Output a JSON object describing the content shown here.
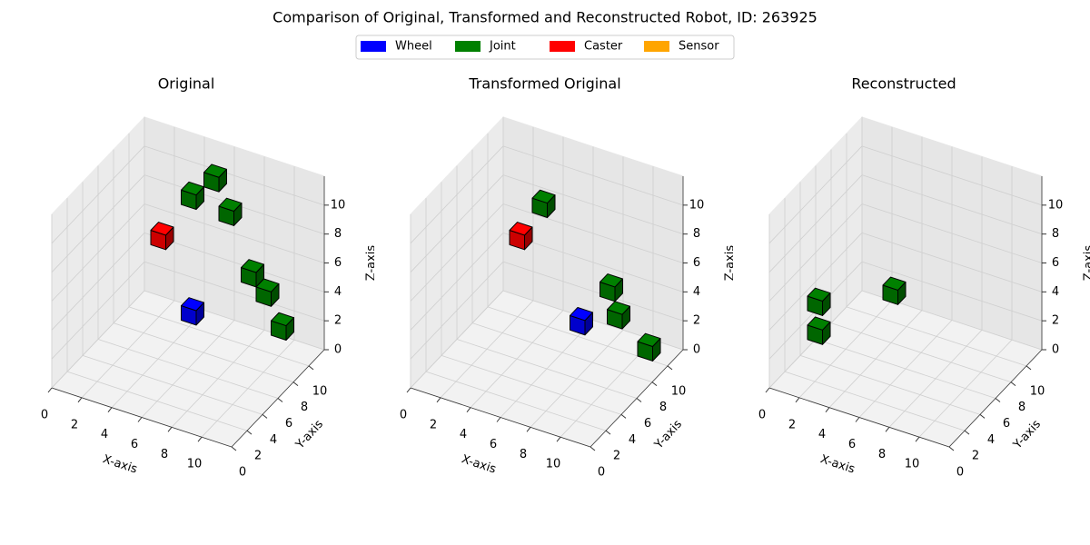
{
  "chart_data": {
    "type": "voxel",
    "title": "Comparison of Original, Transformed and Reconstructed Robot, ID: 263925",
    "legend_loc": "upper center",
    "series": [
      {
        "name": "Wheel",
        "color": "#0000ff"
      },
      {
        "name": "Joint",
        "color": "#008000"
      },
      {
        "name": "Caster",
        "color": "#ff0000"
      },
      {
        "name": "Sensor",
        "color": "#ffa500"
      }
    ],
    "panels": [
      {
        "title": "Original",
        "xlabel": "X-axis",
        "ylabel": "Y-axis",
        "zlabel": "Z-axis",
        "xlim": [
          0,
          12
        ],
        "ylim": [
          0,
          12
        ],
        "zlim": [
          0,
          12
        ],
        "xticks": [
          0,
          2,
          4,
          6,
          8,
          10
        ],
        "yticks": [
          0,
          2,
          4,
          6,
          8,
          10
        ],
        "zticks": [
          0,
          2,
          4,
          6,
          8,
          10
        ],
        "grid": true,
        "series": [
          {
            "x": [
              4
            ],
            "y": [
              9
            ],
            "z": [
              1
            ]
          },
          {
            "x": [
              5,
              4,
              6,
              8,
              9,
              10
            ],
            "y": [
              10,
              9,
              10,
              9,
              9,
              9
            ],
            "z": [
              10,
              9,
              8,
              5,
              4,
              2
            ]
          },
          {
            "x": [
              3
            ],
            "y": [
              7
            ],
            "z": [
              7
            ]
          },
          {
            "x": [],
            "y": [],
            "z": []
          }
        ]
      },
      {
        "title": "Transformed Original",
        "xlabel": "X-axis",
        "ylabel": "Y-axis",
        "zlabel": "Z-axis",
        "xlim": [
          0,
          12
        ],
        "ylim": [
          0,
          12
        ],
        "zlim": [
          0,
          12
        ],
        "xticks": [
          0,
          2,
          4,
          6,
          8,
          10
        ],
        "yticks": [
          0,
          2,
          4,
          6,
          8,
          10
        ],
        "zticks": [
          0,
          2,
          4,
          6,
          8,
          10
        ],
        "grid": true,
        "series": [
          {
            "x": [
              6
            ],
            "y": [
              9
            ],
            "z": [
              1
            ]
          },
          {
            "x": [
              4,
              8,
              9,
              10
            ],
            "y": [
              8,
              9,
              8,
              10
            ],
            "z": [
              9,
              4,
              3,
              0
            ]
          },
          {
            "x": [
              3
            ],
            "y": [
              7
            ],
            "z": [
              7
            ]
          },
          {
            "x": [],
            "y": [],
            "z": []
          }
        ]
      },
      {
        "title": "Reconstructed",
        "xlabel": "X-axis",
        "ylabel": "Y-axis",
        "zlabel": "Z-axis",
        "xlim": [
          0,
          12
        ],
        "ylim": [
          0,
          12
        ],
        "zlim": [
          0,
          12
        ],
        "xticks": [
          0,
          2,
          4,
          6,
          8,
          10
        ],
        "yticks": [
          0,
          2,
          4,
          6,
          8,
          10
        ],
        "zticks": [
          0,
          2,
          4,
          6,
          8,
          10
        ],
        "grid": true,
        "series": [
          {
            "x": [],
            "y": [],
            "z": []
          },
          {
            "x": [
              5,
              1,
              1
            ],
            "y": [
              5,
              3,
              3
            ],
            "z": [
              5,
              4,
              2
            ]
          },
          {
            "x": [],
            "y": [],
            "z": []
          },
          {
            "x": [],
            "y": [],
            "z": []
          }
        ]
      }
    ]
  }
}
